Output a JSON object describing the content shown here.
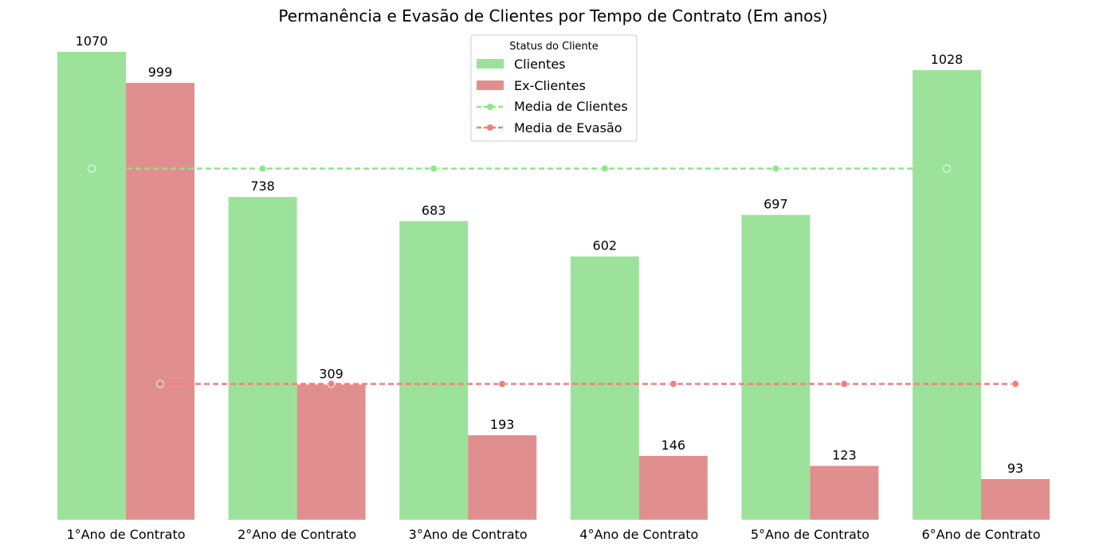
{
  "chart_data": {
    "type": "bar",
    "title": "Permanência e Evasão de Clientes por Tempo de Contrato (Em anos)",
    "xlabel": "",
    "ylabel": "",
    "categories": [
      "1°Ano de Contrato",
      "2°Ano de Contrato",
      "3°Ano de Contrato",
      "4°Ano de Contrato",
      "5°Ano de Contrato",
      "6°Ano de Contrato"
    ],
    "series": [
      {
        "name": "Clientes",
        "values": [
          1070,
          738,
          683,
          602,
          697,
          1028
        ],
        "color": "#9ce29b"
      },
      {
        "name": "Ex-Clientes",
        "values": [
          999,
          309,
          193,
          146,
          123,
          93
        ],
        "color": "#e18e8f"
      }
    ],
    "mean_lines": [
      {
        "name": "Media de Clientes",
        "value": 803,
        "color": "#8ee68d"
      },
      {
        "name": "Media de Evasão",
        "value": 310.5,
        "color": "#ee8180"
      }
    ],
    "ylim": [
      0,
      1070
    ],
    "grid": false,
    "legend": {
      "title": "Status do Cliente",
      "placement": "top-center"
    }
  }
}
